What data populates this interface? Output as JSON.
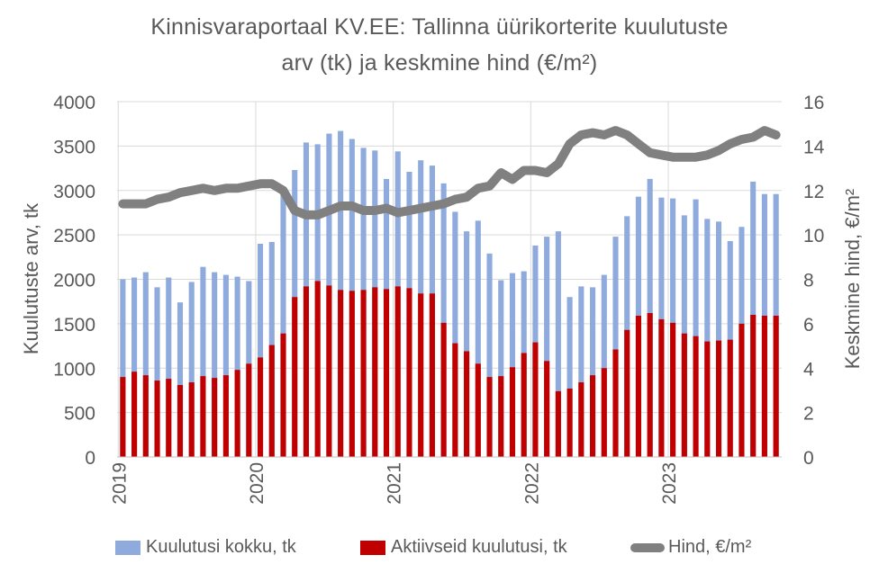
{
  "chart_data": {
    "type": "bar",
    "title_line1": "Kinnisvaraportaal KV.EE: Tallinna üürikorterite kuulutuste",
    "title_line2": "arv (tk) ja keskmine hind (€/m²)",
    "ylabel_left": "Kuulutuste arv, tk",
    "ylabel_right": "Keskmine hind, €/m²",
    "ylim_left": [
      0,
      4000
    ],
    "yticks_left": [
      "0",
      "500",
      "1000",
      "1500",
      "2000",
      "2500",
      "3000",
      "3500",
      "4000"
    ],
    "ylim_right": [
      0,
      16
    ],
    "yticks_right": [
      "0",
      "2",
      "4",
      "6",
      "8",
      "10",
      "12",
      "14",
      "16"
    ],
    "x_tick_labels": [
      "2019",
      "2020",
      "2021",
      "2022",
      "2023"
    ],
    "grid": true,
    "legend_position": "bottom",
    "colors": {
      "total": "#8faadc",
      "active": "#c00000",
      "price": "#808080"
    },
    "categories": [
      "2019-01",
      "2019-02",
      "2019-03",
      "2019-04",
      "2019-05",
      "2019-06",
      "2019-07",
      "2019-08",
      "2019-09",
      "2019-10",
      "2019-11",
      "2019-12",
      "2020-01",
      "2020-02",
      "2020-03",
      "2020-04",
      "2020-05",
      "2020-06",
      "2020-07",
      "2020-08",
      "2020-09",
      "2020-10",
      "2020-11",
      "2020-12",
      "2021-01",
      "2021-02",
      "2021-03",
      "2021-04",
      "2021-05",
      "2021-06",
      "2021-07",
      "2021-08",
      "2021-09",
      "2021-10",
      "2021-11",
      "2021-12",
      "2022-01",
      "2022-02",
      "2022-03",
      "2022-04",
      "2022-05",
      "2022-06",
      "2022-07",
      "2022-08",
      "2022-09",
      "2022-10",
      "2022-11",
      "2022-12",
      "2023-01",
      "2023-02",
      "2023-03",
      "2023-04",
      "2023-05",
      "2023-06",
      "2023-07",
      "2023-08",
      "2023-09",
      "2023-10"
    ],
    "series": [
      {
        "name": "Kuulutusi kokku, tk",
        "type": "bar",
        "values": [
          2000,
          2020,
          2080,
          1910,
          2020,
          1740,
          1970,
          2140,
          2080,
          2050,
          2030,
          1980,
          2400,
          2420,
          3000,
          3230,
          3540,
          3520,
          3640,
          3670,
          3580,
          3480,
          3450,
          3130,
          3440,
          3210,
          3340,
          3280,
          3080,
          2760,
          2540,
          2660,
          2290,
          1990,
          2070,
          2090,
          2380,
          2480,
          2540,
          1800,
          1920,
          1910,
          2050,
          2480,
          2710,
          2930,
          3130,
          2920,
          2910,
          2720,
          2900,
          2680,
          2650,
          2430,
          2590,
          3100,
          2960,
          2960
        ]
      },
      {
        "name": "Aktiivseid kuulutusi, tk",
        "type": "bar",
        "values": [
          900,
          960,
          920,
          860,
          880,
          810,
          840,
          910,
          890,
          920,
          980,
          1050,
          1120,
          1260,
          1390,
          1800,
          1920,
          1980,
          1930,
          1880,
          1870,
          1880,
          1910,
          1890,
          1920,
          1900,
          1840,
          1840,
          1510,
          1280,
          1190,
          1050,
          900,
          910,
          1010,
          1170,
          1290,
          1080,
          740,
          770,
          840,
          920,
          1000,
          1210,
          1430,
          1590,
          1620,
          1550,
          1510,
          1390,
          1360,
          1300,
          1310,
          1320,
          1500,
          1600,
          1590,
          1590
        ]
      },
      {
        "name": "Hind, €/m²",
        "type": "line",
        "axis": "right",
        "values": [
          11.4,
          11.4,
          11.4,
          11.6,
          11.7,
          11.9,
          12.0,
          12.1,
          12.0,
          12.1,
          12.1,
          12.2,
          12.3,
          12.3,
          12.0,
          11.1,
          10.9,
          10.9,
          11.1,
          11.3,
          11.3,
          11.1,
          11.1,
          11.2,
          11.0,
          11.1,
          11.2,
          11.3,
          11.4,
          11.6,
          11.7,
          12.1,
          12.2,
          12.8,
          12.5,
          12.9,
          12.9,
          12.8,
          13.2,
          14.1,
          14.5,
          14.6,
          14.5,
          14.7,
          14.5,
          14.1,
          13.7,
          13.6,
          13.5,
          13.5,
          13.5,
          13.6,
          13.8,
          14.1,
          14.3,
          14.4,
          14.7,
          14.5
        ]
      }
    ]
  }
}
